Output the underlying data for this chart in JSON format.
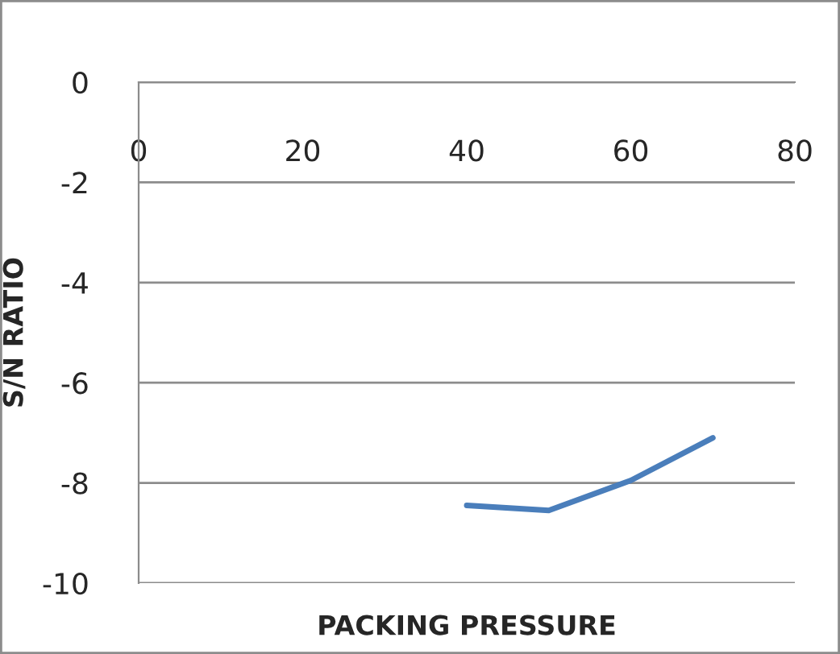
{
  "chart_data": {
    "type": "line",
    "xlabel": "PACKING PRESSURE",
    "ylabel": "S/N RATIO",
    "x": [
      40,
      50,
      60,
      70
    ],
    "series": [
      {
        "color": "#4a7ebb",
        "values": [
          -8.45,
          -8.55,
          -7.95,
          -7.1
        ]
      }
    ],
    "xlim": [
      0,
      80
    ],
    "xticks": [
      0,
      20,
      40,
      60,
      80
    ],
    "ylim": [
      -10,
      0
    ],
    "yticks": [
      -10,
      -8,
      -6,
      -4,
      -2,
      0
    ],
    "grid": "y",
    "marker": "none",
    "line_style": "solid"
  }
}
